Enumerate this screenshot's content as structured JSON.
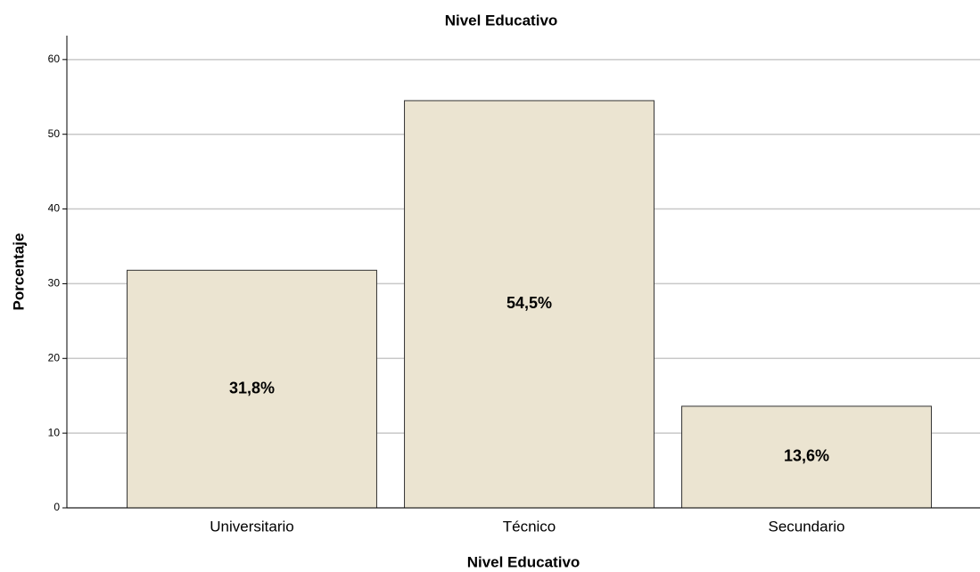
{
  "chart_data": {
    "type": "bar",
    "title": "Nivel Educativo",
    "x_label": "Nivel Educativo",
    "y_label": "Porcentaje",
    "categories": [
      "Universitario",
      "Técnico",
      "Secundario"
    ],
    "values": [
      31.8,
      54.5,
      13.6
    ],
    "value_labels": [
      "31,8%",
      "54,5%",
      "13,6%"
    ],
    "color": "#ebe4d1",
    "ylim": [
      0,
      63.2
    ],
    "yticks": [
      0,
      10,
      20,
      30,
      40,
      50,
      60
    ],
    "grid": true
  }
}
